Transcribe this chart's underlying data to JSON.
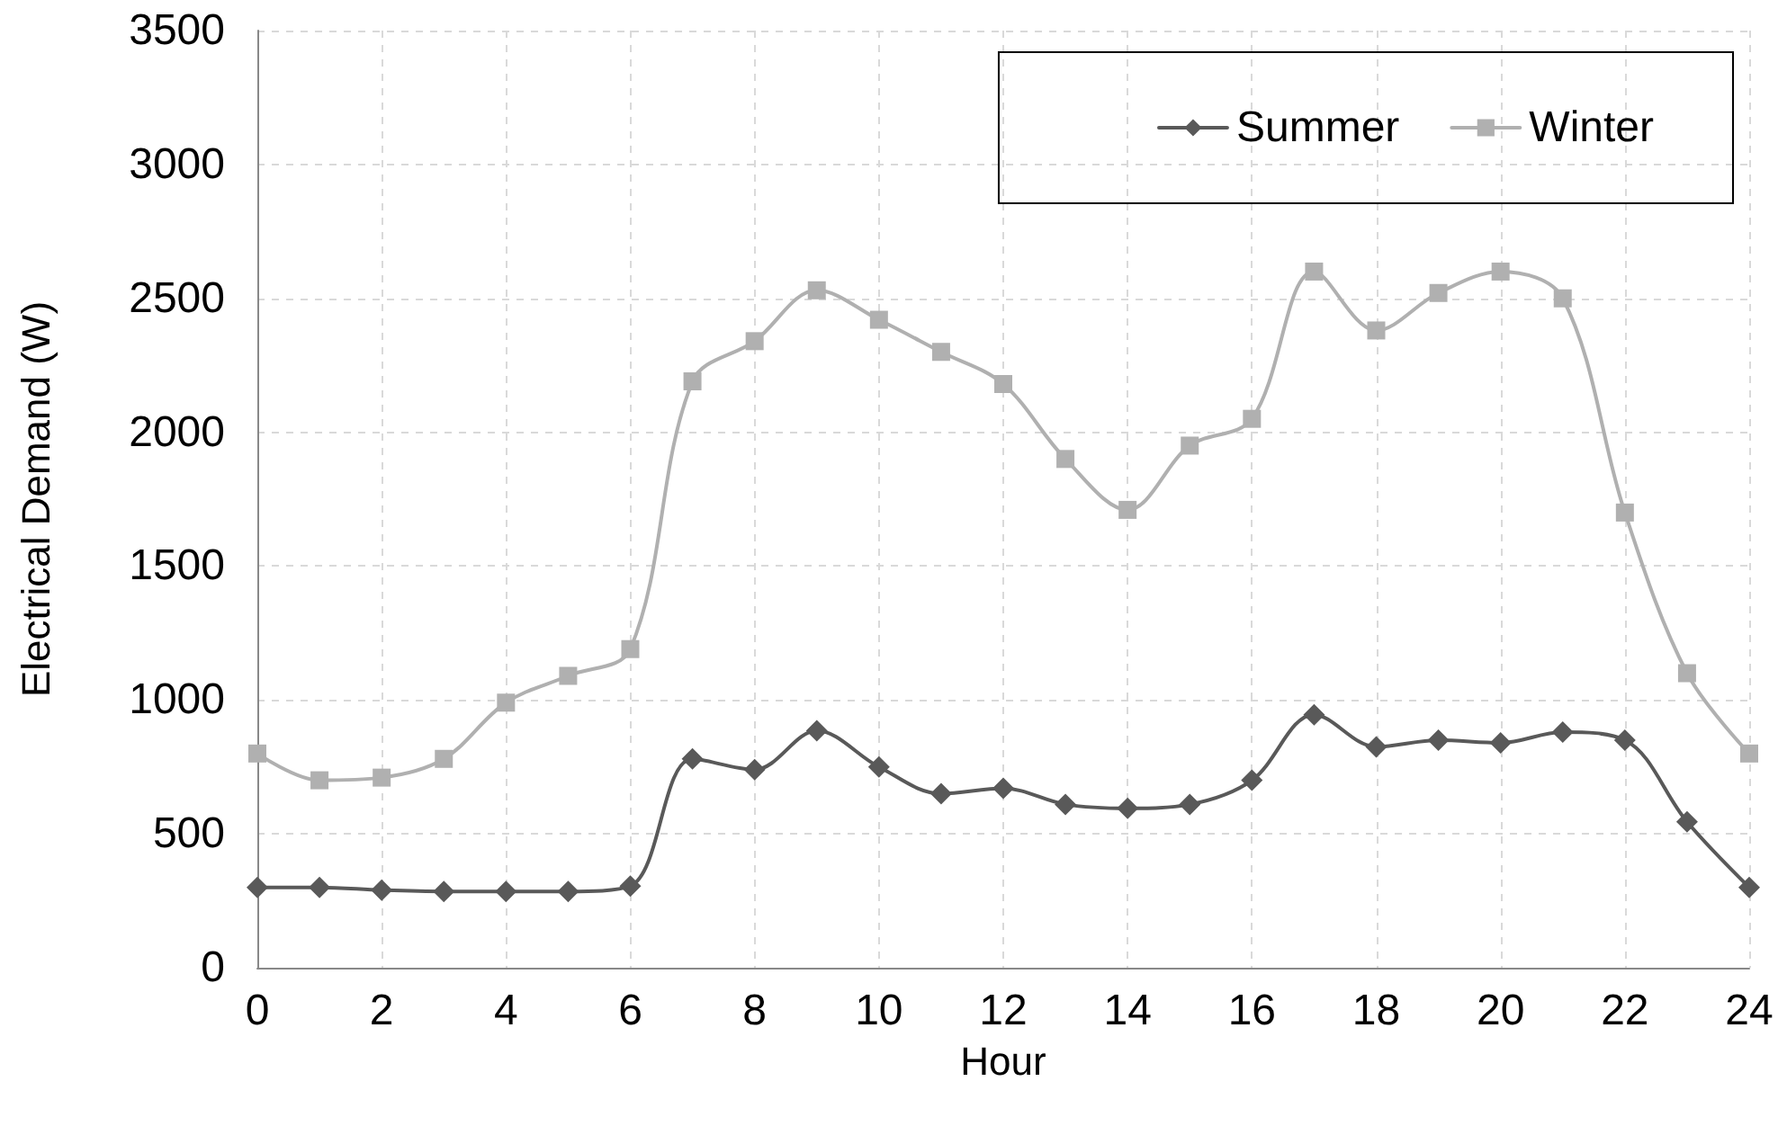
{
  "chart_data": {
    "type": "line",
    "xlabel": "Hour",
    "ylabel": "Electrical Demand (W)",
    "x": [
      0,
      1,
      2,
      3,
      4,
      5,
      6,
      7,
      8,
      9,
      10,
      11,
      12,
      13,
      14,
      15,
      16,
      17,
      18,
      19,
      20,
      21,
      22,
      23,
      24
    ],
    "series": [
      {
        "name": "Summer",
        "color": "#595959",
        "marker": "diamond",
        "values": [
          300,
          300,
          290,
          285,
          285,
          285,
          305,
          780,
          740,
          885,
          750,
          650,
          670,
          610,
          595,
          610,
          700,
          945,
          825,
          850,
          840,
          880,
          850,
          545,
          300
        ]
      },
      {
        "name": "Winter",
        "color": "#b0b0b0",
        "marker": "square",
        "values": [
          800,
          700,
          710,
          780,
          990,
          1090,
          1190,
          2190,
          2340,
          2530,
          2420,
          2300,
          2180,
          1900,
          1710,
          1950,
          2050,
          2600,
          2380,
          2520,
          2600,
          2500,
          1700,
          1100,
          800
        ]
      }
    ],
    "xlim": [
      0,
      24
    ],
    "xticks": [
      0,
      2,
      4,
      6,
      8,
      10,
      12,
      14,
      16,
      18,
      20,
      22,
      24
    ],
    "ylim": [
      0,
      3500
    ],
    "yticks": [
      0,
      500,
      1000,
      1500,
      2000,
      2500,
      3000,
      3500
    ],
    "grid": true,
    "legend": "top right",
    "line_style": "solid"
  }
}
